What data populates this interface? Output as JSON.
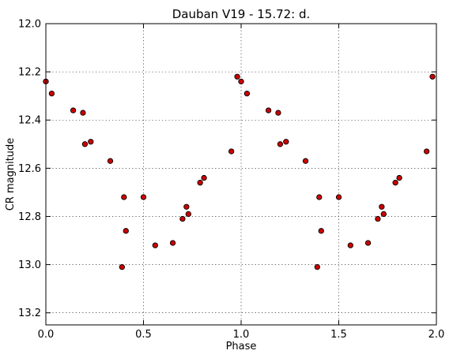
{
  "chart_data": {
    "type": "scatter",
    "title": "Dauban V19 - 15.72: d.",
    "xlabel": "Phase",
    "ylabel": "CR magnitude",
    "xlim": [
      0.0,
      2.0
    ],
    "ylim": [
      12.0,
      13.25
    ],
    "y_inverted": true,
    "grid": true,
    "x_ticks": [
      0.0,
      0.5,
      1.0,
      1.5,
      2.0
    ],
    "x_tick_labels": [
      "0.0",
      "0.5",
      "1.0",
      "1.5",
      "2.0"
    ],
    "y_ticks": [
      12.0,
      12.2,
      12.4,
      12.6,
      12.8,
      13.0,
      13.2
    ],
    "y_tick_labels": [
      "12.0",
      "12.2",
      "12.4",
      "12.6",
      "12.8",
      "13.0",
      "13.2"
    ],
    "marker_color": "#cc0000",
    "marker_edge": "#000000",
    "points": [
      {
        "x": 0.0,
        "y": 12.24
      },
      {
        "x": 0.03,
        "y": 12.29
      },
      {
        "x": 0.14,
        "y": 12.36
      },
      {
        "x": 0.19,
        "y": 12.37
      },
      {
        "x": 0.2,
        "y": 12.5
      },
      {
        "x": 0.23,
        "y": 12.49
      },
      {
        "x": 0.33,
        "y": 12.57
      },
      {
        "x": 0.39,
        "y": 13.01
      },
      {
        "x": 0.4,
        "y": 12.72
      },
      {
        "x": 0.41,
        "y": 12.86
      },
      {
        "x": 0.5,
        "y": 12.72
      },
      {
        "x": 0.56,
        "y": 12.92
      },
      {
        "x": 0.65,
        "y": 12.91
      },
      {
        "x": 0.7,
        "y": 12.81
      },
      {
        "x": 0.72,
        "y": 12.76
      },
      {
        "x": 0.73,
        "y": 12.79
      },
      {
        "x": 0.79,
        "y": 12.66
      },
      {
        "x": 0.81,
        "y": 12.64
      },
      {
        "x": 0.95,
        "y": 12.53
      },
      {
        "x": 0.98,
        "y": 12.22
      },
      {
        "x": 1.0,
        "y": 12.24
      },
      {
        "x": 1.03,
        "y": 12.29
      },
      {
        "x": 1.14,
        "y": 12.36
      },
      {
        "x": 1.19,
        "y": 12.37
      },
      {
        "x": 1.2,
        "y": 12.5
      },
      {
        "x": 1.23,
        "y": 12.49
      },
      {
        "x": 1.33,
        "y": 12.57
      },
      {
        "x": 1.39,
        "y": 13.01
      },
      {
        "x": 1.4,
        "y": 12.72
      },
      {
        "x": 1.41,
        "y": 12.86
      },
      {
        "x": 1.5,
        "y": 12.72
      },
      {
        "x": 1.56,
        "y": 12.92
      },
      {
        "x": 1.65,
        "y": 12.91
      },
      {
        "x": 1.7,
        "y": 12.81
      },
      {
        "x": 1.72,
        "y": 12.76
      },
      {
        "x": 1.73,
        "y": 12.79
      },
      {
        "x": 1.79,
        "y": 12.66
      },
      {
        "x": 1.81,
        "y": 12.64
      },
      {
        "x": 1.95,
        "y": 12.53
      },
      {
        "x": 1.98,
        "y": 12.22
      }
    ]
  }
}
